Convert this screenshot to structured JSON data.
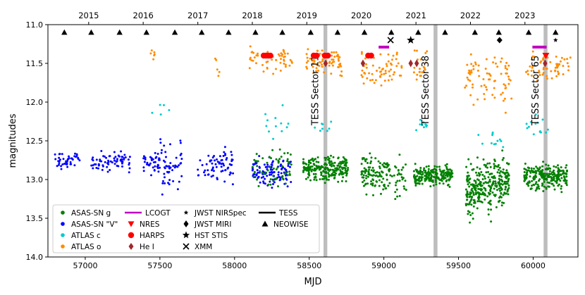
{
  "chart_data": {
    "type": "scatter",
    "title": "",
    "xlabel": "MJD",
    "ylabel": "magnitudes",
    "xlim": [
      56750,
      60300
    ],
    "ylim": [
      14.0,
      11.0
    ],
    "y_inverted": true,
    "x_ticks": [
      57000,
      57500,
      58000,
      58500,
      59000,
      59500,
      60000
    ],
    "y_ticks": [
      11.0,
      11.5,
      12.0,
      12.5,
      13.0,
      13.5,
      14.0
    ],
    "top_axis": {
      "labels": [
        "2015",
        "2016",
        "2017",
        "2018",
        "2019",
        "2020",
        "2021",
        "2022",
        "2023"
      ],
      "positions_mjd": [
        57023,
        57388,
        57754,
        58119,
        58484,
        58849,
        59215,
        59580,
        59945
      ]
    },
    "tess_sectors": [
      {
        "label": "TESS Sector 11",
        "mjd_start": 58596,
        "mjd_end": 58621
      },
      {
        "label": "TESS Sector 38",
        "mjd_start": 59333,
        "mjd_end": 59359
      },
      {
        "label": "TESS Sector 65",
        "mjd_start": 60070,
        "mjd_end": 60096
      }
    ],
    "neowise": {
      "mjd": [
        56860,
        57040,
        57230,
        57410,
        57600,
        57780,
        57960,
        58140,
        58320,
        58510,
        58690,
        58870,
        59050,
        59230,
        59410,
        59610,
        59770,
        59970,
        60150
      ],
      "mag": 11.1
    },
    "lcogt": [
      [
        58965,
        59035,
        11.29
      ],
      [
        59995,
        60090,
        11.29
      ]
    ],
    "nres": [
      [
        60085,
        11.4
      ]
    ],
    "harps": [
      [
        58195,
        11.4
      ],
      [
        58210,
        11.4
      ],
      [
        58225,
        11.4
      ],
      [
        58240,
        11.4
      ],
      [
        58530,
        11.4
      ],
      [
        58550,
        11.4
      ],
      [
        58605,
        11.4
      ],
      [
        58625,
        11.4
      ],
      [
        58895,
        11.4
      ],
      [
        58915,
        11.4
      ]
    ],
    "hei": [
      [
        58610,
        11.5
      ],
      [
        58860,
        11.5
      ],
      [
        59180,
        11.5
      ],
      [
        59220,
        11.5
      ],
      [
        60080,
        11.5
      ]
    ],
    "jwst_nirspec": [
      [
        60150,
        11.2
      ]
    ],
    "jwst_miri": [
      [
        59775,
        11.2
      ]
    ],
    "hst_stis": [
      [
        59180,
        11.2
      ]
    ],
    "xmm": [
      [
        59045,
        11.2
      ]
    ],
    "segments": {
      "asassn_v": [
        {
          "x0": 56780,
          "x1": 56965,
          "center": 12.75,
          "spread": 0.05,
          "n": 45
        },
        {
          "x0": 57040,
          "x1": 57300,
          "center": 12.77,
          "spread": 0.06,
          "n": 70
        },
        {
          "x0": 57390,
          "x1": 57500,
          "center": 12.78,
          "spread": 0.07,
          "n": 40
        },
        {
          "x0": 57500,
          "x1": 57650,
          "center": 12.82,
          "spread": 0.14,
          "n": 50,
          "tail_to": 13.22
        },
        {
          "x0": 57750,
          "x1": 57990,
          "center": 12.84,
          "spread": 0.09,
          "n": 70
        },
        {
          "x0": 58120,
          "x1": 58380,
          "center": 12.9,
          "spread": 0.09,
          "n": 110
        }
      ],
      "asassn_g": [
        {
          "x0": 58120,
          "x1": 58380,
          "center": 12.87,
          "spread": 0.12,
          "n": 60
        },
        {
          "x0": 58460,
          "x1": 58760,
          "center": 12.85,
          "spread": 0.08,
          "n": 230
        },
        {
          "x0": 58850,
          "x1": 59000,
          "center": 12.93,
          "spread": 0.12,
          "n": 90
        },
        {
          "x0": 59000,
          "x1": 59150,
          "center": 12.95,
          "spread": 0.12,
          "n": 55
        },
        {
          "x0": 59200,
          "x1": 59460,
          "center": 12.95,
          "spread": 0.06,
          "n": 200
        },
        {
          "x0": 59550,
          "x1": 59720,
          "center": 13.12,
          "spread": 0.16,
          "n": 190
        },
        {
          "x0": 59720,
          "x1": 59840,
          "center": 13.05,
          "spread": 0.14,
          "n": 120
        },
        {
          "x0": 59940,
          "x1": 60230,
          "center": 12.96,
          "spread": 0.08,
          "n": 240
        }
      ],
      "atlas_o": [
        {
          "x0": 57420,
          "x1": 57470,
          "center": 11.36,
          "spread": 0.04,
          "n": 6
        },
        {
          "x0": 57870,
          "x1": 57900,
          "center": 11.52,
          "spread": 0.08,
          "n": 5
        },
        {
          "x0": 58100,
          "x1": 58390,
          "center": 11.47,
          "spread": 0.07,
          "n": 55
        },
        {
          "x0": 58480,
          "x1": 58720,
          "center": 11.48,
          "spread": 0.08,
          "n": 70
        },
        {
          "x0": 58850,
          "x1": 59120,
          "center": 11.58,
          "spread": 0.12,
          "n": 60
        },
        {
          "x0": 59200,
          "x1": 59290,
          "center": 11.52,
          "spread": 0.1,
          "n": 20
        },
        {
          "x0": 59540,
          "x1": 59860,
          "center": 11.7,
          "spread": 0.16,
          "n": 75
        },
        {
          "x0": 59950,
          "x1": 60250,
          "center": 11.55,
          "spread": 0.09,
          "n": 60
        }
      ],
      "atlas_c": [
        {
          "x0": 57440,
          "x1": 57570,
          "center": 12.1,
          "spread": 0.04,
          "n": 5
        },
        {
          "x0": 58200,
          "x1": 58360,
          "center": 12.28,
          "spread": 0.1,
          "n": 12
        },
        {
          "x0": 58530,
          "x1": 58650,
          "center": 12.3,
          "spread": 0.06,
          "n": 8
        },
        {
          "x0": 59200,
          "x1": 59290,
          "center": 12.3,
          "spread": 0.05,
          "n": 10
        },
        {
          "x0": 59610,
          "x1": 59820,
          "center": 12.5,
          "spread": 0.06,
          "n": 12
        },
        {
          "x0": 59950,
          "x1": 60100,
          "center": 12.32,
          "spread": 0.12,
          "n": 14
        }
      ]
    },
    "legend": {
      "placement": "bottom-left",
      "entries": [
        {
          "label": "ASAS-SN g",
          "marker": "dot",
          "color": "#008000"
        },
        {
          "label": "ASAS-SN \"V\"",
          "marker": "dot",
          "color": "#0000ff"
        },
        {
          "label": "ATLAS c",
          "marker": "dot",
          "color": "#00cccc"
        },
        {
          "label": "ATLAS o",
          "marker": "dot",
          "color": "#ff8c00"
        },
        {
          "label": "LCOGT",
          "marker": "line",
          "color": "#c000c0"
        },
        {
          "label": "NRES",
          "marker": "triangle-down",
          "color": "#ff0000"
        },
        {
          "label": "HARPS",
          "marker": "circle",
          "color": "#ff0000"
        },
        {
          "label": "He I",
          "marker": "diamond",
          "color": "#a0282d"
        },
        {
          "label": "JWST NIRSpec",
          "marker": "star-small",
          "color": "#000000"
        },
        {
          "label": "JWST MIRI",
          "marker": "diamond",
          "color": "#000000"
        },
        {
          "label": "HST STIS",
          "marker": "star",
          "color": "#000000"
        },
        {
          "label": "XMM",
          "marker": "x",
          "color": "#000000"
        },
        {
          "label": "TESS",
          "marker": "line",
          "color": "#000000"
        },
        {
          "label": "NEOWISE",
          "marker": "triangle-up",
          "color": "#000000"
        }
      ]
    }
  }
}
